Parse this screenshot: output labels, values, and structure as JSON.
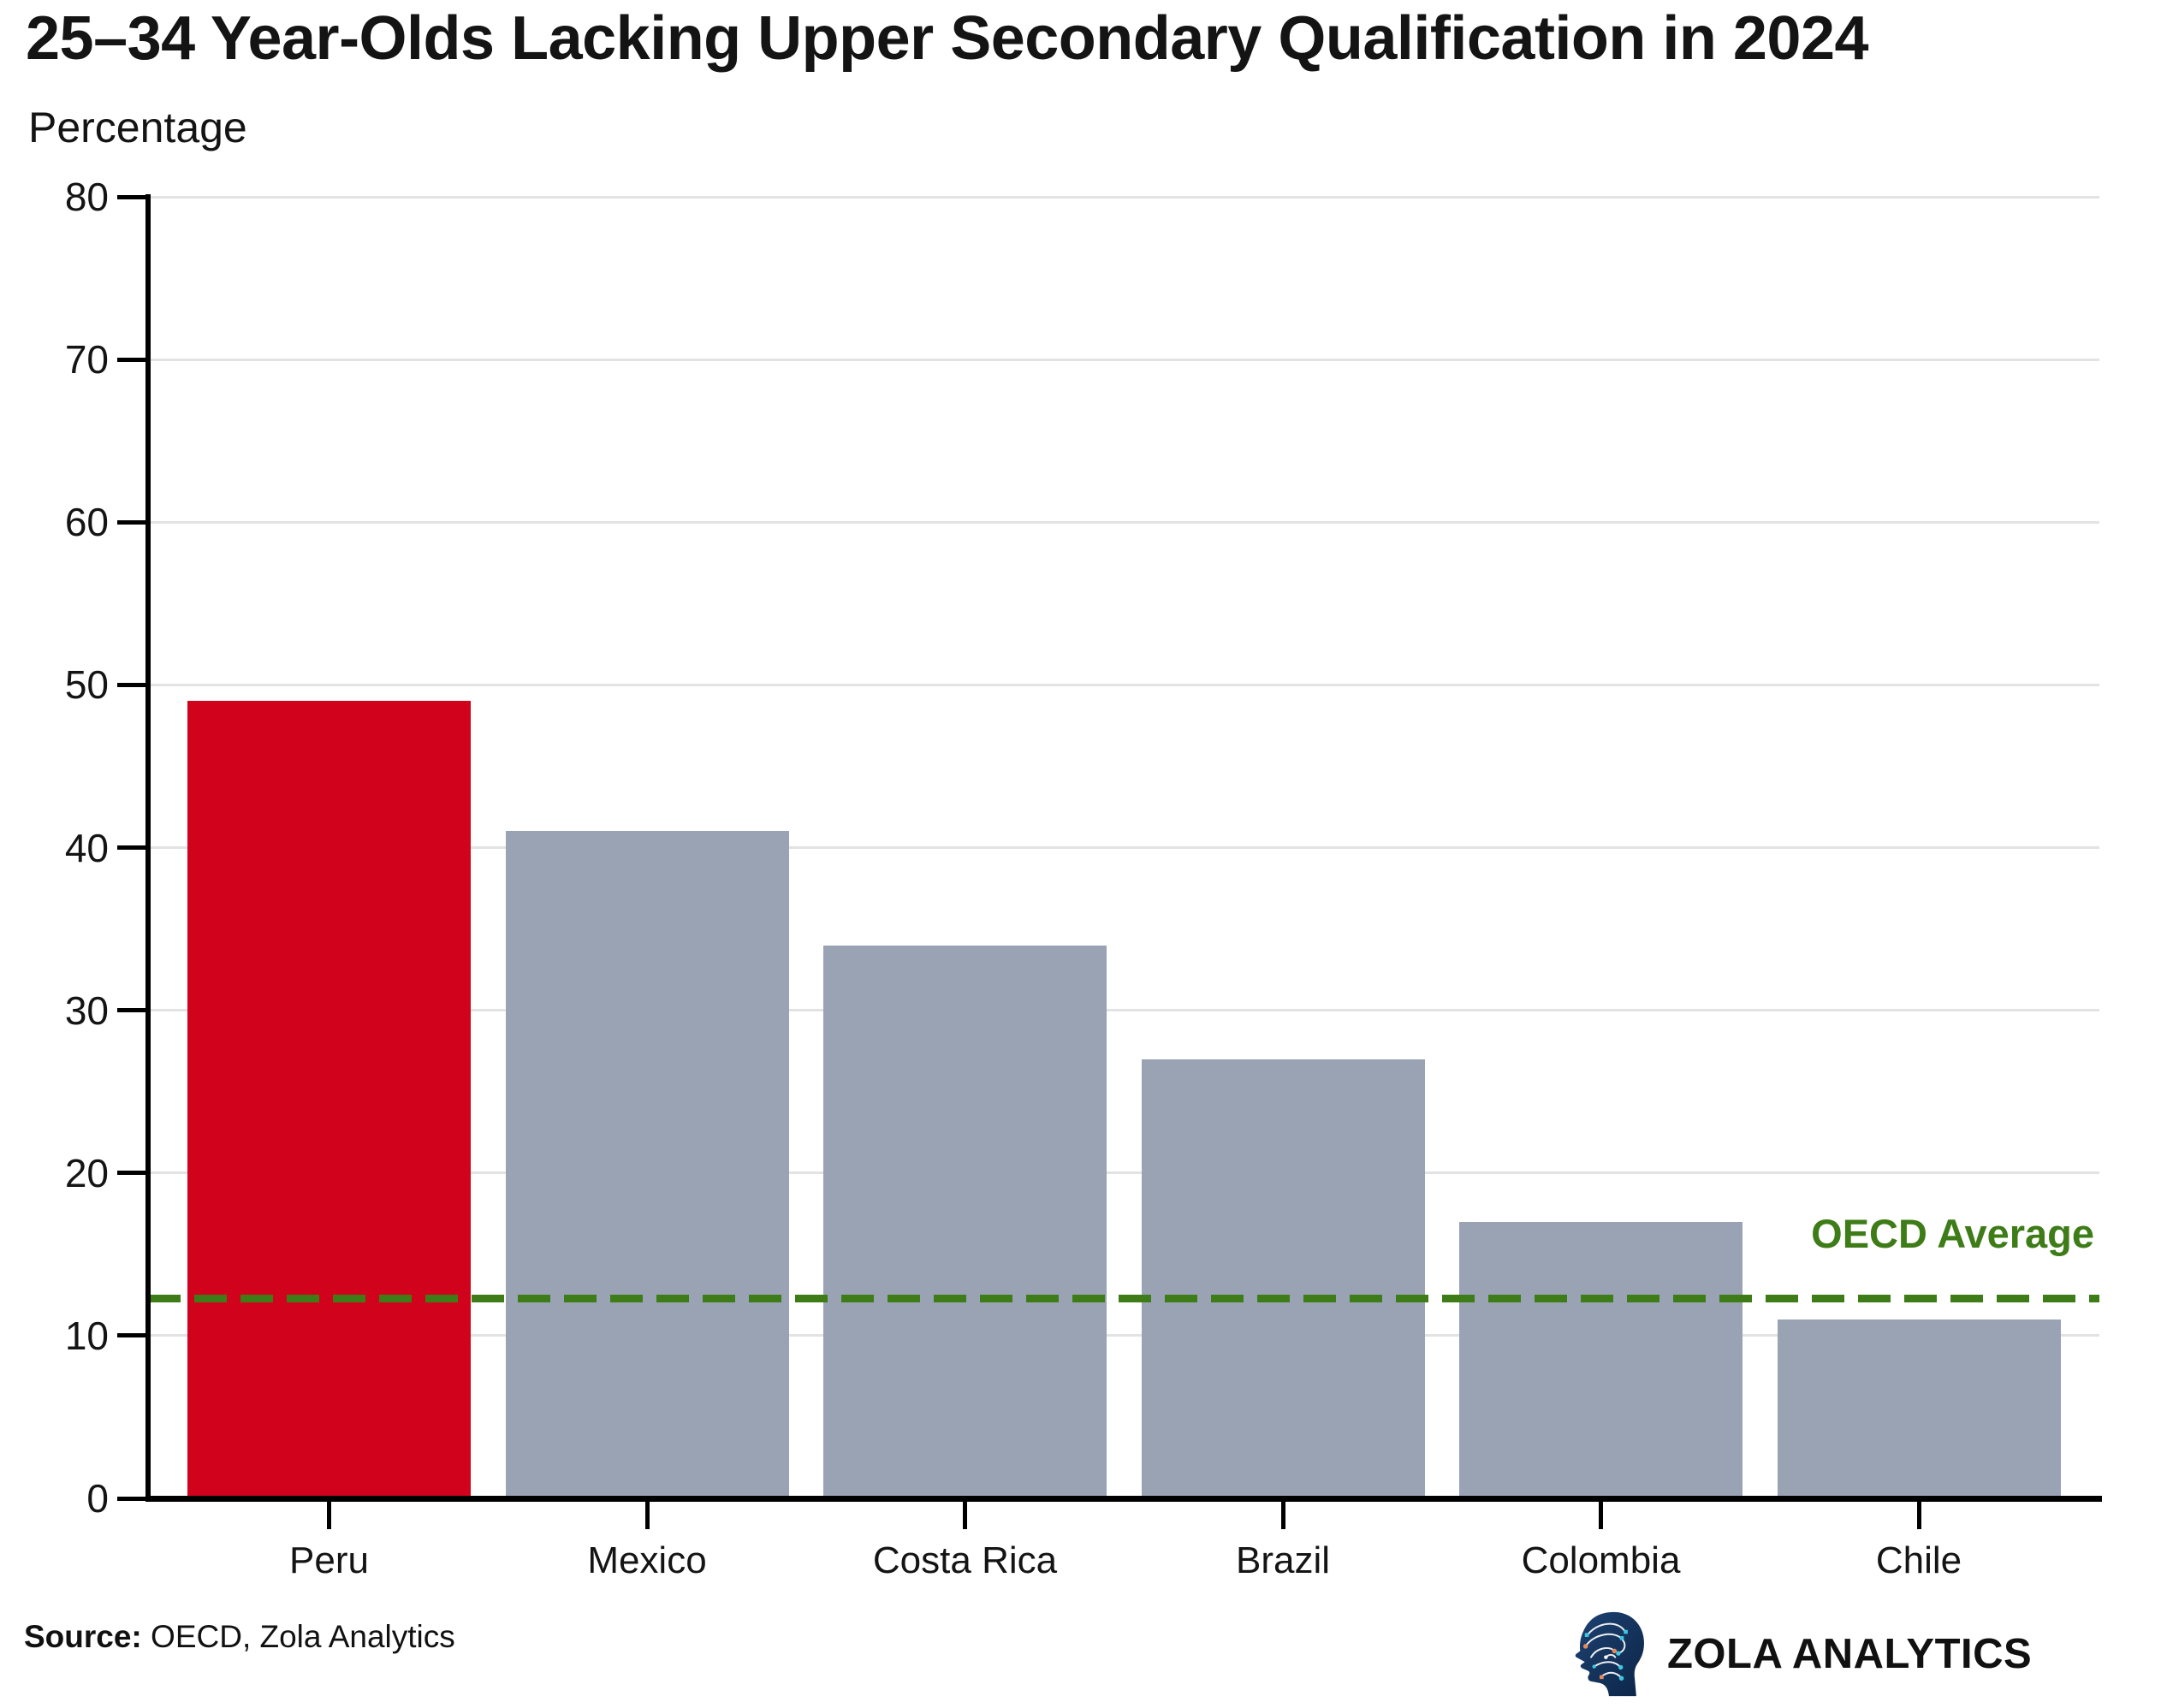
{
  "header": {
    "title": "25–34 Year-Olds Lacking Upper Secondary Qualification in 2024",
    "y_axis_unit": "Percentage"
  },
  "chart_data": {
    "type": "bar",
    "title": "25–34 Year-Olds Lacking Upper Secondary Qualification in 2024",
    "ylabel": "Percentage",
    "xlabel": "",
    "categories": [
      "Peru",
      "Mexico",
      "Costa Rica",
      "Brazil",
      "Colombia",
      "Chile"
    ],
    "values": [
      49,
      41,
      34,
      27,
      17,
      11
    ],
    "highlight_category": "Peru",
    "ylim": [
      0,
      80
    ],
    "yticks": [
      0,
      10,
      20,
      30,
      40,
      50,
      60,
      70,
      80
    ],
    "grid": "horizontal",
    "legend": "none",
    "reference_line": {
      "label": "OECD Average",
      "value": 12.3
    }
  },
  "colors": {
    "bar_default": "#99a3b4",
    "bar_highlight": "#d0021c",
    "reference_line": "#3e7c17",
    "axis": "#000000",
    "gridline": "#e3e3e3",
    "text": "#141414"
  },
  "footer": {
    "source_label": "Source:",
    "source_text": " OECD, Zola Analytics",
    "brand_name": "ZOLA ANALYTICS",
    "brand_logo": "ai-head-circuit-icon"
  }
}
